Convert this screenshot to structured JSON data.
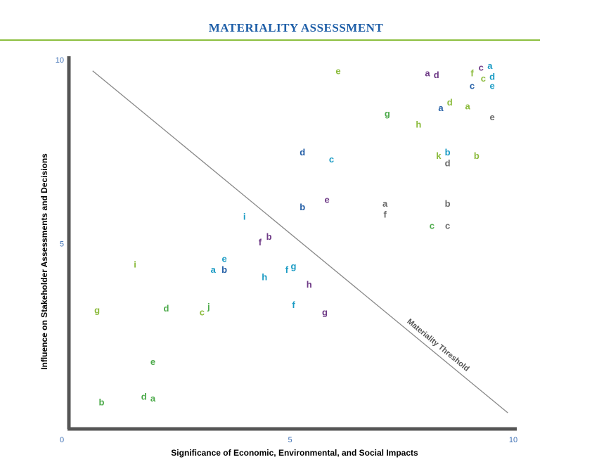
{
  "title": "MATERIALITY ASSESSMENT",
  "colors": {
    "title": "#1f5fa8",
    "rule": "#8cbf3f",
    "axis": "#555555",
    "tick": "#3d6fb4",
    "threshold": "#888888",
    "green": "#8bbb3c",
    "purple": "#6e3a86",
    "teal": "#1a9bc4",
    "darkblue": "#235ea6",
    "gray": "#6a6a6a",
    "kelly": "#4caa4a"
  },
  "chart_data": {
    "type": "scatter",
    "title": "MATERIALITY ASSESSMENT",
    "xlabel": "Significance of Economic, Environmental, and Social Impacts",
    "ylabel": "Influence on Stakeholder Assessments and Decisions",
    "xlim": [
      0,
      10
    ],
    "ylim": [
      0,
      10
    ],
    "x_ticks": [
      "0",
      "5",
      "10"
    ],
    "y_ticks": [
      "5",
      "10"
    ],
    "grid": false,
    "threshold": {
      "label": "Materiality Threshold",
      "from": [
        0.5,
        9.7
      ],
      "to": [
        9.8,
        0.4
      ]
    },
    "points": [
      {
        "label": "e",
        "x": 6.0,
        "y": 9.7,
        "color": "green"
      },
      {
        "label": "a",
        "x": 8.0,
        "y": 9.65,
        "color": "purple"
      },
      {
        "label": "d",
        "x": 8.2,
        "y": 9.6,
        "color": "purple"
      },
      {
        "label": "f",
        "x": 9.0,
        "y": 9.65,
        "color": "green"
      },
      {
        "label": "c",
        "x": 9.2,
        "y": 9.8,
        "color": "purple"
      },
      {
        "label": "a",
        "x": 9.4,
        "y": 9.85,
        "color": "teal"
      },
      {
        "label": "c",
        "x": 9.25,
        "y": 9.5,
        "color": "green"
      },
      {
        "label": "d",
        "x": 9.45,
        "y": 9.55,
        "color": "teal"
      },
      {
        "label": "c",
        "x": 9.0,
        "y": 9.3,
        "color": "darkblue"
      },
      {
        "label": "e",
        "x": 9.45,
        "y": 9.3,
        "color": "teal"
      },
      {
        "label": "d",
        "x": 8.5,
        "y": 8.85,
        "color": "green"
      },
      {
        "label": "a",
        "x": 8.3,
        "y": 8.7,
        "color": "darkblue"
      },
      {
        "label": "a",
        "x": 8.9,
        "y": 8.75,
        "color": "green"
      },
      {
        "label": "e",
        "x": 9.45,
        "y": 8.45,
        "color": "gray"
      },
      {
        "label": "g",
        "x": 7.1,
        "y": 8.55,
        "color": "kelly"
      },
      {
        "label": "h",
        "x": 7.8,
        "y": 8.25,
        "color": "green"
      },
      {
        "label": "d",
        "x": 5.2,
        "y": 7.5,
        "color": "darkblue"
      },
      {
        "label": "c",
        "x": 5.85,
        "y": 7.3,
        "color": "teal"
      },
      {
        "label": "k",
        "x": 8.25,
        "y": 7.4,
        "color": "green"
      },
      {
        "label": "b",
        "x": 8.45,
        "y": 7.5,
        "color": "teal"
      },
      {
        "label": "d",
        "x": 8.45,
        "y": 7.2,
        "color": "gray"
      },
      {
        "label": "b",
        "x": 9.1,
        "y": 7.4,
        "color": "green"
      },
      {
        "label": "e",
        "x": 5.75,
        "y": 6.2,
        "color": "purple"
      },
      {
        "label": "a",
        "x": 7.05,
        "y": 6.1,
        "color": "gray"
      },
      {
        "label": "f",
        "x": 7.05,
        "y": 5.8,
        "color": "gray"
      },
      {
        "label": "b",
        "x": 5.2,
        "y": 6.0,
        "color": "darkblue"
      },
      {
        "label": "b",
        "x": 8.45,
        "y": 6.1,
        "color": "gray"
      },
      {
        "label": "c",
        "x": 8.1,
        "y": 5.5,
        "color": "kelly"
      },
      {
        "label": "c",
        "x": 8.45,
        "y": 5.5,
        "color": "gray"
      },
      {
        "label": "i",
        "x": 3.9,
        "y": 5.75,
        "color": "teal"
      },
      {
        "label": "b",
        "x": 4.45,
        "y": 5.2,
        "color": "purple"
      },
      {
        "label": "f",
        "x": 4.25,
        "y": 5.05,
        "color": "purple"
      },
      {
        "label": "e",
        "x": 3.45,
        "y": 4.6,
        "color": "teal"
      },
      {
        "label": "a",
        "x": 3.2,
        "y": 4.3,
        "color": "teal"
      },
      {
        "label": "b",
        "x": 3.45,
        "y": 4.3,
        "color": "darkblue"
      },
      {
        "label": "h",
        "x": 4.35,
        "y": 4.1,
        "color": "teal"
      },
      {
        "label": "f",
        "x": 4.85,
        "y": 4.3,
        "color": "teal"
      },
      {
        "label": "g",
        "x": 5.0,
        "y": 4.4,
        "color": "teal"
      },
      {
        "label": "h",
        "x": 5.35,
        "y": 3.9,
        "color": "purple"
      },
      {
        "label": "i",
        "x": 1.45,
        "y": 4.45,
        "color": "green"
      },
      {
        "label": "g",
        "x": 0.6,
        "y": 3.2,
        "color": "green"
      },
      {
        "label": "d",
        "x": 2.15,
        "y": 3.25,
        "color": "kelly"
      },
      {
        "label": "c",
        "x": 2.95,
        "y": 3.15,
        "color": "green"
      },
      {
        "label": "j",
        "x": 3.1,
        "y": 3.3,
        "color": "kelly"
      },
      {
        "label": "f",
        "x": 5.0,
        "y": 3.35,
        "color": "teal"
      },
      {
        "label": "g",
        "x": 5.7,
        "y": 3.15,
        "color": "purple"
      },
      {
        "label": "e",
        "x": 1.85,
        "y": 1.8,
        "color": "kelly"
      },
      {
        "label": "d",
        "x": 1.65,
        "y": 0.85,
        "color": "kelly"
      },
      {
        "label": "a",
        "x": 1.85,
        "y": 0.8,
        "color": "kelly"
      },
      {
        "label": "b",
        "x": 0.7,
        "y": 0.7,
        "color": "kelly"
      }
    ]
  }
}
